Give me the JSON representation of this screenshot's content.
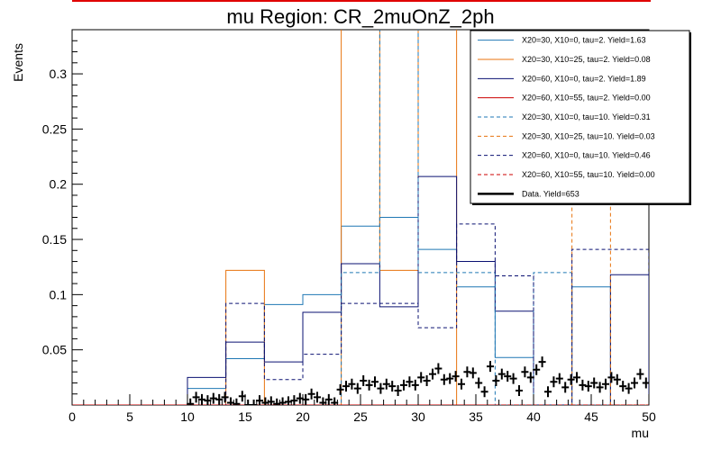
{
  "chart_data": {
    "type": "histogram",
    "title": "mu Region: CR_2muOnZ_2ph",
    "xlabel": "mu",
    "ylabel": "Events",
    "xlim": [
      0,
      50
    ],
    "ylim": [
      0,
      0.34
    ],
    "xticks": [
      0,
      5,
      10,
      15,
      20,
      25,
      30,
      35,
      40,
      45,
      50
    ],
    "yticks": [
      0.05,
      0.1,
      0.15,
      0.2,
      0.25,
      0.3
    ],
    "bin_edges": [
      0,
      3.33,
      6.67,
      10,
      13.33,
      16.67,
      20,
      23.33,
      26.67,
      30,
      33.33,
      36.67,
      40,
      43.33,
      46.67,
      50
    ],
    "legend_position": "top-right",
    "series": [
      {
        "name": "X20=30, X10=0, tau=2. Yield=1.63",
        "color": "#1f77b4",
        "style": "solid",
        "values": [
          0,
          0,
          0,
          0.015,
          0.042,
          0.091,
          0.1,
          0.162,
          0.17,
          0.141,
          0.107,
          0.043,
          0,
          0.107,
          0
        ]
      },
      {
        "name": "X20=30, X10=25, tau=2. Yield=0.08",
        "color": "#e8730e",
        "style": "solid",
        "values": [
          0,
          0,
          0,
          0,
          0.122,
          0,
          0,
          0.36,
          0.122,
          0.36,
          0,
          0,
          0,
          0,
          0
        ]
      },
      {
        "name": "X20=60, X10=0, tau=2. Yield=1.89",
        "color": "#0a1072",
        "style": "solid",
        "values": [
          0,
          0,
          0,
          0.025,
          0.057,
          0.039,
          0.084,
          0.128,
          0.089,
          0.207,
          0.13,
          0.085,
          0,
          0,
          0.118
        ]
      },
      {
        "name": "X20=60, X10=55, tau=2. Yield=0.00",
        "color": "#cc0000",
        "style": "solid",
        "values": [
          0,
          0,
          0,
          0,
          0,
          0,
          0,
          0,
          0,
          0,
          0,
          0,
          0,
          0,
          0
        ]
      },
      {
        "name": "X20=30, X10=0, tau=10. Yield=0.31",
        "color": "#1f77b4",
        "style": "dashed",
        "values": [
          0,
          0,
          0,
          0,
          0,
          0,
          0,
          0.12,
          0.36,
          0.12,
          0.12,
          0,
          0.12,
          0,
          0
        ]
      },
      {
        "name": "X20=30, X10=25, tau=10. Yield=0.03",
        "color": "#e8730e",
        "style": "dashed",
        "values": [
          0,
          0,
          0,
          0,
          0,
          0,
          0,
          0,
          0,
          0,
          0,
          0,
          0,
          0.36,
          0
        ]
      },
      {
        "name": "X20=60, X10=0, tau=10. Yield=0.46",
        "color": "#0a1072",
        "style": "dashed",
        "values": [
          0,
          0,
          0,
          0,
          0.092,
          0.023,
          0.046,
          0.092,
          0.092,
          0.07,
          0.164,
          0.117,
          0,
          0.141,
          0.141
        ]
      },
      {
        "name": "X20=60, X10=55, tau=10. Yield=0.00",
        "color": "#cc0000",
        "style": "dashed",
        "values": [
          0,
          0,
          0,
          0,
          0,
          0,
          0,
          0,
          0,
          0,
          0,
          0,
          0,
          0,
          0
        ]
      },
      {
        "name": "Data. Yield=653",
        "color": "#000000",
        "style": "markers",
        "x": [
          10.25,
          10.75,
          11.25,
          11.75,
          12.25,
          12.75,
          13.25,
          13.75,
          14.25,
          14.75,
          15.25,
          15.75,
          16.25,
          16.75,
          17.25,
          17.75,
          18.25,
          18.75,
          19.25,
          19.75,
          20.25,
          20.75,
          21.25,
          21.75,
          22.25,
          22.75,
          23.25,
          23.75,
          24.25,
          24.75,
          25.25,
          25.75,
          26.25,
          26.75,
          27.25,
          27.75,
          28.25,
          28.75,
          29.25,
          29.75,
          30.25,
          30.75,
          31.25,
          31.75,
          32.25,
          32.75,
          33.25,
          33.75,
          34.25,
          34.75,
          35.25,
          35.75,
          36.25,
          36.75,
          37.25,
          37.75,
          38.25,
          38.75,
          39.25,
          39.75,
          40.25,
          40.75,
          41.25,
          41.75,
          42.25,
          42.75,
          43.25,
          43.75,
          44.25,
          44.75,
          45.25,
          45.75,
          46.25,
          46.75,
          47.25,
          47.75,
          48.25,
          48.75,
          49.25,
          49.75
        ],
        "values": [
          0.001,
          0.007,
          0.005,
          0.004,
          0.006,
          0.005,
          0.007,
          0.002,
          0.001,
          0.008,
          0.0,
          0.0,
          0.004,
          0.002,
          0.003,
          0.001,
          0.002,
          0.003,
          0.004,
          0.006,
          0.005,
          0.01,
          0.007,
          0.002,
          0.005,
          0.002,
          0.014,
          0.017,
          0.019,
          0.015,
          0.022,
          0.018,
          0.021,
          0.015,
          0.019,
          0.017,
          0.013,
          0.018,
          0.021,
          0.018,
          0.025,
          0.022,
          0.028,
          0.033,
          0.023,
          0.024,
          0.026,
          0.019,
          0.03,
          0.029,
          0.02,
          0.012,
          0.035,
          0.022,
          0.028,
          0.026,
          0.024,
          0.013,
          0.03,
          0.025,
          0.032,
          0.039,
          0.012,
          0.021,
          0.024,
          0.016,
          0.023,
          0.025,
          0.018,
          0.017,
          0.02,
          0.016,
          0.019,
          0.025,
          0.023,
          0.017,
          0.015,
          0.02,
          0.028,
          0.02
        ]
      }
    ]
  }
}
